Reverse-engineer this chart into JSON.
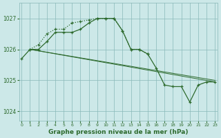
{
  "line1": {
    "x": [
      0,
      1,
      2,
      3,
      4,
      5,
      6,
      7,
      8,
      9,
      10,
      11,
      12,
      13,
      14,
      15,
      16,
      17,
      18,
      19,
      20,
      21,
      22,
      23
    ],
    "y": [
      1025.7,
      1026.0,
      1026.0,
      1026.25,
      1026.55,
      1026.55,
      1026.55,
      1026.65,
      1026.85,
      1027.0,
      1027.0,
      1027.0,
      1026.6,
      1026.0,
      1026.0,
      1025.85,
      1025.4,
      1024.85,
      1024.8,
      1024.8,
      1024.3,
      1024.85,
      1024.95,
      1024.95
    ],
    "marker": "+"
  },
  "line2": {
    "x": [
      1,
      2,
      3,
      4,
      5,
      6,
      7,
      8,
      9,
      10,
      11,
      12,
      13,
      14,
      15
    ],
    "y": [
      1026.0,
      1026.15,
      1026.5,
      1026.65,
      1026.65,
      1026.85,
      1026.9,
      1026.95,
      1027.0,
      1027.0,
      1027.0,
      1026.6,
      1026.0,
      1026.0,
      1025.85
    ],
    "marker": "+"
  },
  "line3": {
    "x": [
      1,
      23
    ],
    "y": [
      1026.0,
      1024.95
    ],
    "marker": ""
  },
  "line4": {
    "x": [
      1,
      23
    ],
    "y": [
      1026.0,
      1025.0
    ],
    "marker": ""
  },
  "line_color": "#2d6a2d",
  "bg_color": "#cce8e8",
  "grid_color": "#88b8b8",
  "xlabel": "Graphe pression niveau de la mer (hPa)",
  "xticks": [
    0,
    1,
    2,
    3,
    4,
    5,
    6,
    7,
    8,
    9,
    10,
    11,
    12,
    13,
    14,
    15,
    16,
    17,
    18,
    19,
    20,
    21,
    22,
    23
  ],
  "yticks": [
    1024,
    1025,
    1026,
    1027
  ],
  "ylim": [
    1023.7,
    1027.5
  ],
  "xlim": [
    -0.3,
    23.3
  ]
}
